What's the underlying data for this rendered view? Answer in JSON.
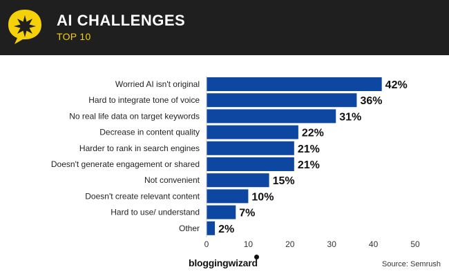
{
  "header": {
    "title": "AI CHALLENGES",
    "subtitle": "TOP 10"
  },
  "footer": {
    "brand": "bloggingwizard",
    "source": "Source: Semrush"
  },
  "colors": {
    "bar": "#0d47a1",
    "header_bg": "#1f1f1f",
    "accent": "#f5d10a"
  },
  "chart_data": {
    "type": "bar",
    "orientation": "horizontal",
    "title": "AI CHALLENGES",
    "subtitle": "TOP 10",
    "categories": [
      "Worried AI isn't original",
      "Hard to integrate tone of voice",
      "No real life data on target keywords",
      "Decrease in content quality",
      "Harder to rank in search engines",
      "Doesn't generate engagement or shared",
      "Not convenient",
      "Doesn't create relevant content",
      "Hard to use/ understand",
      "Other"
    ],
    "values": [
      42,
      36,
      31,
      22,
      21,
      21,
      15,
      10,
      7,
      2
    ],
    "value_labels": [
      "42%",
      "36%",
      "31%",
      "22%",
      "21%",
      "21%",
      "15%",
      "10%",
      "7%",
      "2%"
    ],
    "xlim": [
      0,
      50
    ],
    "xticks": [
      0,
      10,
      20,
      30,
      40,
      50
    ],
    "xlabel": "",
    "ylabel": ""
  }
}
